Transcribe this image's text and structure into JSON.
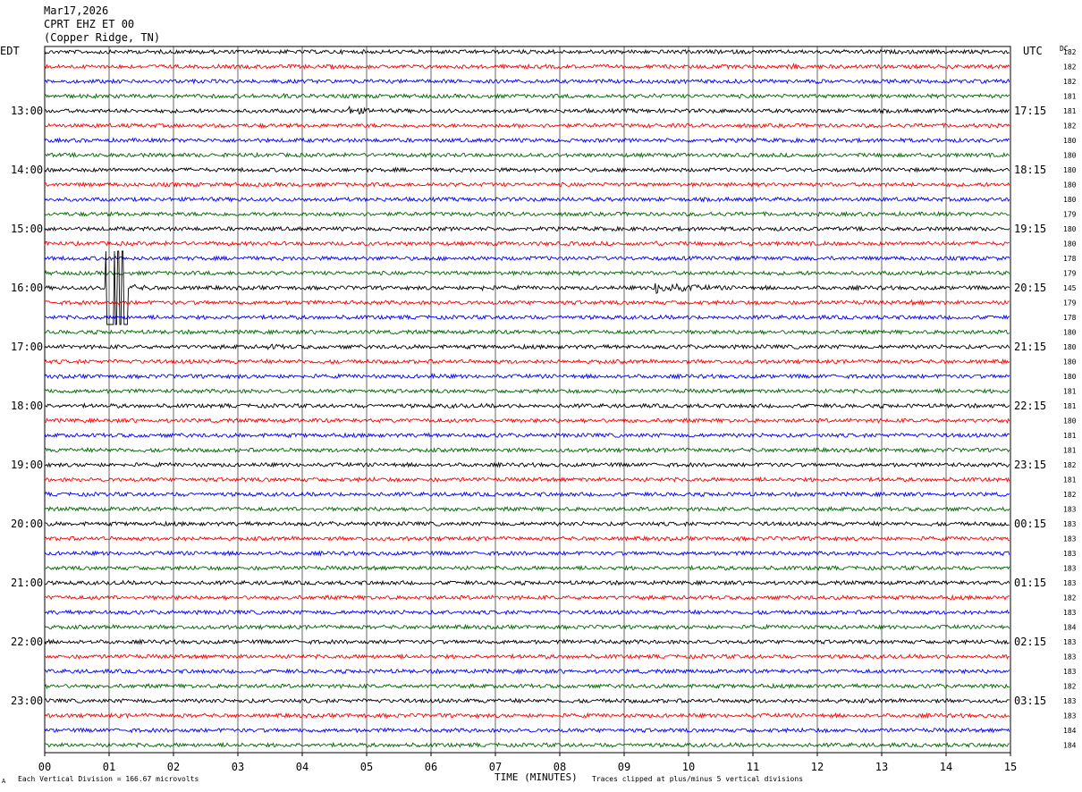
{
  "header": {
    "date": "Mar17,2026",
    "station": "CPRT EHZ ET 00",
    "location": "(Copper Ridge, TN)"
  },
  "left_axis_label": "EDT",
  "right_axis_label": "UTC",
  "dc_label": "DC",
  "footer": {
    "scale_note": "Each Vertical Division =  166.67 microvolts",
    "xlabel": "TIME (MINUTES)",
    "clip_note": "Traces clipped at plus/minus 5 vertical divisions",
    "corner_mark": "A"
  },
  "colors": {
    "trace_cycle": [
      "#000000",
      "#ff0000",
      "#0000ff",
      "#006600"
    ],
    "grid": "#000000",
    "background": "#ffffff"
  },
  "chart_data": {
    "type": "line",
    "title": "CPRT EHZ ET 00 (Copper Ridge, TN) Mar17,2026",
    "xlabel": "TIME (MINUTES)",
    "ylabel": "",
    "xlim": [
      0,
      15
    ],
    "x_ticks": [
      "00",
      "01",
      "02",
      "03",
      "04",
      "05",
      "06",
      "07",
      "08",
      "09",
      "10",
      "11",
      "12",
      "13",
      "14",
      "15"
    ],
    "trace_count": 48,
    "minutes_per_trace": 15,
    "edt_hour_labels": [
      "13:00",
      "14:00",
      "15:00",
      "16:00",
      "17:00",
      "18:00",
      "19:00",
      "20:00",
      "21:00",
      "22:00",
      "23:00"
    ],
    "utc_hour_labels": [
      "17:15",
      "18:15",
      "19:15",
      "20:15",
      "21:15",
      "22:15",
      "23:15",
      "00:15",
      "01:15",
      "02:15",
      "03:15"
    ],
    "dc_offsets": [
      182,
      182,
      182,
      181,
      181,
      182,
      180,
      180,
      180,
      180,
      180,
      179,
      180,
      180,
      178,
      179,
      145,
      179,
      178,
      180,
      180,
      180,
      180,
      181,
      181,
      180,
      181,
      181,
      182,
      181,
      182,
      183,
      183,
      183,
      183,
      183,
      183,
      182,
      183,
      184,
      183,
      183,
      183,
      182,
      183,
      183,
      184,
      184
    ],
    "events": [
      {
        "trace": 1,
        "minute": 11.65,
        "amplitude": 0.5,
        "duration": 0.35
      },
      {
        "trace": 3,
        "minute": 3.75,
        "amplitude": 0.5,
        "duration": 0.4
      },
      {
        "trace": 3,
        "minute": 9.5,
        "amplitude": 0.35,
        "duration": 0.1
      },
      {
        "trace": 4,
        "minute": 4.75,
        "amplitude": 1.0,
        "duration": 0.7
      },
      {
        "trace": 8,
        "minute": 0.7,
        "amplitude": 0.25,
        "duration": 0.3
      },
      {
        "trace": 13,
        "minute": 9.5,
        "amplitude": 0.6,
        "duration": 0.3
      },
      {
        "trace": 16,
        "minute": 1.0,
        "amplitude": 5.0,
        "duration": 0.6,
        "clipped": true
      },
      {
        "trace": 16,
        "minute": 1.3,
        "amplitude": 0.8,
        "duration": 0.9
      },
      {
        "trace": 16,
        "minute": 6.8,
        "amplitude": 0.4,
        "duration": 0.9
      },
      {
        "trace": 16,
        "minute": 9.5,
        "amplitude": 1.6,
        "duration": 1.6
      },
      {
        "trace": 17,
        "minute": 13.5,
        "amplitude": 0.3,
        "duration": 1.2
      },
      {
        "trace": 20,
        "minute": 3.5,
        "amplitude": 0.4,
        "duration": 1.5
      },
      {
        "trace": 22,
        "minute": 6.0,
        "amplitude": 0.4,
        "duration": 0.8
      },
      {
        "trace": 24,
        "minute": 6.3,
        "amplitude": 0.3,
        "duration": 0.6
      },
      {
        "trace": 28,
        "minute": 11.25,
        "amplitude": 0.3,
        "duration": 0.2
      },
      {
        "trace": 41,
        "minute": 12.05,
        "amplitude": 0.3,
        "duration": 0.3
      }
    ]
  }
}
